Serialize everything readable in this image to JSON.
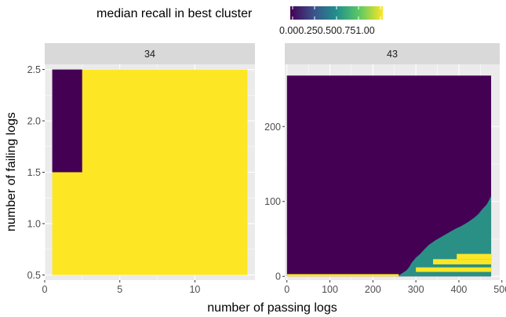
{
  "legend": {
    "title": "median recall in best cluster",
    "tick_labels": [
      "0.00",
      "0.25",
      "0.50",
      "0.75",
      "1.00"
    ],
    "colors": [
      "#440154",
      "#3b528b",
      "#21908c",
      "#5dc963",
      "#fde725"
    ]
  },
  "colors": {
    "panel_bg": "#ebebeb",
    "strip_bg": "#d9d9d9",
    "grid": "#ffffff",
    "low": "#440154",
    "mid": "#2a9086",
    "high": "#fde725"
  },
  "chart_data": [
    {
      "type": "heatmap",
      "panel_label": "34",
      "xlabel": "number of passing logs",
      "ylabel": "number of failing logs",
      "xlim": [
        0,
        14
      ],
      "ylim": [
        0.45,
        2.55
      ],
      "xticks": [
        0,
        5,
        10
      ],
      "yticks": [
        0.5,
        1.0,
        1.5,
        2.0,
        2.5
      ],
      "ytick_labels": [
        "0.5",
        "1.0",
        "1.5",
        "2.0",
        "2.5"
      ],
      "regions": [
        {
          "x": [
            0.5,
            2.5
          ],
          "y": [
            1.5,
            2.5
          ],
          "value": 0.0
        },
        {
          "x": [
            2.5,
            13.5
          ],
          "y": [
            1.5,
            2.5
          ],
          "value": 1.0
        },
        {
          "x": [
            0.5,
            13.5
          ],
          "y": [
            0.5,
            1.5
          ],
          "value": 1.0
        }
      ]
    },
    {
      "type": "heatmap",
      "panel_label": "43",
      "xlabel": "number of passing logs",
      "ylabel": "number of failing logs",
      "xlim": [
        -5,
        495
      ],
      "ylim": [
        -5,
        283
      ],
      "xticks": [
        0,
        100,
        200,
        300,
        400,
        500
      ],
      "yticks": [
        0,
        100,
        200
      ],
      "grid_extent": {
        "x": [
          0,
          475
        ],
        "y": [
          0,
          268
        ]
      },
      "background_value": 0.0,
      "mid_region_upper_boundary": [
        [
          255,
          0
        ],
        [
          265,
          3
        ],
        [
          270,
          5
        ],
        [
          278,
          8
        ],
        [
          285,
          13
        ],
        [
          290,
          18
        ],
        [
          300,
          25
        ],
        [
          310,
          30
        ],
        [
          318,
          35
        ],
        [
          330,
          42
        ],
        [
          345,
          48
        ],
        [
          360,
          53
        ],
        [
          375,
          58
        ],
        [
          390,
          63
        ],
        [
          405,
          67
        ],
        [
          420,
          72
        ],
        [
          435,
          78
        ],
        [
          445,
          83
        ],
        [
          455,
          90
        ],
        [
          465,
          96
        ],
        [
          475,
          107
        ]
      ],
      "high_bands": [
        {
          "x": [
            0,
            260
          ],
          "y": [
            0,
            3
          ],
          "value": 1.0
        },
        {
          "x": [
            395,
            475
          ],
          "y": [
            23,
            30
          ],
          "value": 1.0
        },
        {
          "x": [
            340,
            475
          ],
          "y": [
            16,
            23
          ],
          "value": 1.0
        },
        {
          "x": [
            300,
            475
          ],
          "y": [
            6,
            12
          ],
          "value": 1.0
        }
      ],
      "mid_value": 0.5
    }
  ]
}
